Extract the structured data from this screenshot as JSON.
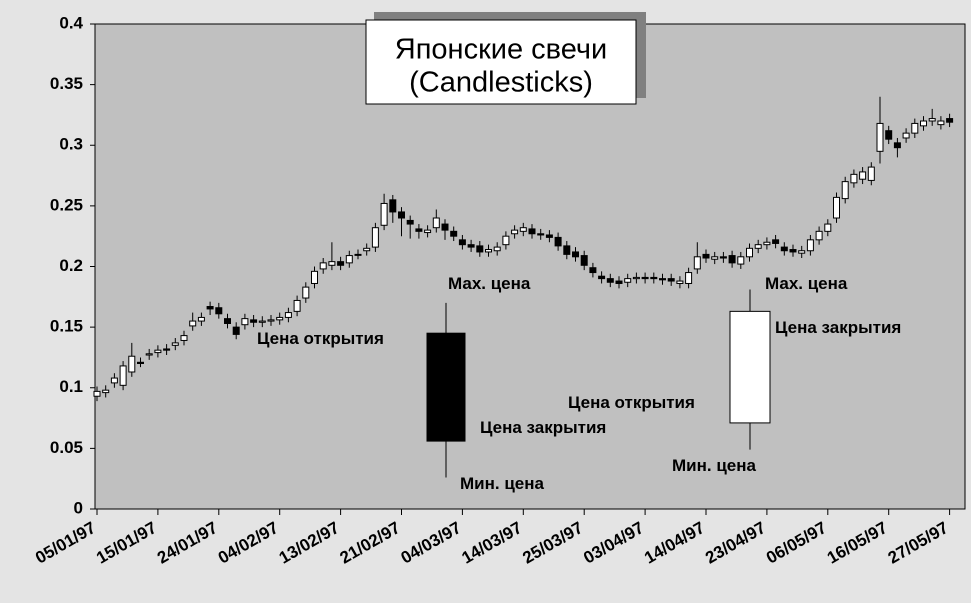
{
  "chart_data": {
    "type": "candlestick",
    "title": "Японские свечи",
    "subtitle": "(Candlesticks)",
    "categories": [
      "05/01/97",
      null,
      null,
      null,
      null,
      null,
      null,
      "15/01/97",
      null,
      null,
      null,
      null,
      null,
      null,
      "24/01/97",
      null,
      null,
      null,
      null,
      null,
      null,
      "04/02/97",
      null,
      null,
      null,
      null,
      null,
      null,
      "13/02/97",
      null,
      null,
      null,
      null,
      null,
      null,
      "21/02/97",
      null,
      null,
      null,
      null,
      null,
      null,
      "04/03/97",
      null,
      null,
      null,
      null,
      null,
      null,
      "14/03/97",
      null,
      null,
      null,
      null,
      null,
      null,
      "25/03/97",
      null,
      null,
      null,
      null,
      null,
      null,
      "03/04/97",
      null,
      null,
      null,
      null,
      null,
      null,
      "14/04/97",
      null,
      null,
      null,
      null,
      null,
      null,
      "23/04/97",
      null,
      null,
      null,
      null,
      null,
      null,
      "06/05/97",
      null,
      null,
      null,
      null,
      null,
      null,
      "16/05/97",
      null,
      null,
      null,
      null,
      null,
      null,
      "27/05/97"
    ],
    "open": [
      0.093,
      0.096,
      0.104,
      0.102,
      0.113,
      0.121,
      0.127,
      0.129,
      0.132,
      0.135,
      0.139,
      0.151,
      0.155,
      0.167,
      0.166,
      0.157,
      0.15,
      0.152,
      0.156,
      0.154,
      0.155,
      0.156,
      0.158,
      0.163,
      0.174,
      0.186,
      0.198,
      0.201,
      0.204,
      0.203,
      0.21,
      0.213,
      0.216,
      0.234,
      0.255,
      0.245,
      0.238,
      0.231,
      0.228,
      0.232,
      0.235,
      0.229,
      0.222,
      0.218,
      0.217,
      0.212,
      0.213,
      0.218,
      0.227,
      0.229,
      0.231,
      0.227,
      0.226,
      0.224,
      0.217,
      0.212,
      0.209,
      0.199,
      0.192,
      0.19,
      0.188,
      0.187,
      0.19,
      0.191,
      0.191,
      0.19,
      0.19,
      0.186,
      0.186,
      0.198,
      0.21,
      0.206,
      0.208,
      0.209,
      0.202,
      0.208,
      0.215,
      0.218,
      0.222,
      0.216,
      0.214,
      0.211,
      0.213,
      0.222,
      0.229,
      0.24,
      0.256,
      0.269,
      0.272,
      0.271,
      0.295,
      0.312,
      0.302,
      0.306,
      0.31,
      0.316,
      0.32,
      0.317,
      0.322
    ],
    "high": [
      0.101,
      0.102,
      0.112,
      0.122,
      0.137,
      0.125,
      0.132,
      0.135,
      0.136,
      0.141,
      0.147,
      0.162,
      0.162,
      0.171,
      0.17,
      0.161,
      0.154,
      0.161,
      0.16,
      0.159,
      0.16,
      0.162,
      0.166,
      0.176,
      0.187,
      0.2,
      0.207,
      0.22,
      0.208,
      0.213,
      0.214,
      0.219,
      0.236,
      0.26,
      0.259,
      0.249,
      0.242,
      0.235,
      0.234,
      0.247,
      0.239,
      0.233,
      0.226,
      0.222,
      0.221,
      0.218,
      0.22,
      0.229,
      0.234,
      0.236,
      0.235,
      0.231,
      0.23,
      0.228,
      0.221,
      0.216,
      0.213,
      0.203,
      0.196,
      0.194,
      0.192,
      0.194,
      0.195,
      0.195,
      0.195,
      0.194,
      0.194,
      0.192,
      0.199,
      0.22,
      0.214,
      0.212,
      0.212,
      0.213,
      0.212,
      0.219,
      0.222,
      0.224,
      0.226,
      0.22,
      0.218,
      0.217,
      0.226,
      0.233,
      0.239,
      0.261,
      0.274,
      0.28,
      0.282,
      0.286,
      0.34,
      0.316,
      0.306,
      0.314,
      0.322,
      0.324,
      0.33,
      0.324,
      0.326
    ],
    "low": [
      0.089,
      0.092,
      0.1,
      0.098,
      0.109,
      0.117,
      0.123,
      0.125,
      0.127,
      0.131,
      0.135,
      0.147,
      0.151,
      0.16,
      0.157,
      0.149,
      0.14,
      0.148,
      0.15,
      0.15,
      0.151,
      0.152,
      0.154,
      0.159,
      0.17,
      0.182,
      0.194,
      0.197,
      0.197,
      0.199,
      0.206,
      0.209,
      0.212,
      0.23,
      0.236,
      0.225,
      0.223,
      0.223,
      0.224,
      0.228,
      0.222,
      0.221,
      0.214,
      0.212,
      0.208,
      0.208,
      0.209,
      0.214,
      0.223,
      0.225,
      0.223,
      0.222,
      0.22,
      0.213,
      0.206,
      0.204,
      0.197,
      0.191,
      0.186,
      0.183,
      0.182,
      0.183,
      0.186,
      0.186,
      0.186,
      0.185,
      0.184,
      0.182,
      0.182,
      0.194,
      0.203,
      0.202,
      0.203,
      0.199,
      0.198,
      0.204,
      0.211,
      0.214,
      0.215,
      0.209,
      0.208,
      0.207,
      0.209,
      0.218,
      0.225,
      0.236,
      0.252,
      0.265,
      0.268,
      0.267,
      0.285,
      0.301,
      0.29,
      0.302,
      0.306,
      0.312,
      0.316,
      0.313,
      0.315
    ],
    "close": [
      0.097,
      0.098,
      0.108,
      0.118,
      0.126,
      0.12,
      0.128,
      0.131,
      0.131,
      0.137,
      0.143,
      0.155,
      0.158,
      0.165,
      0.161,
      0.153,
      0.144,
      0.157,
      0.154,
      0.155,
      0.156,
      0.158,
      0.162,
      0.172,
      0.183,
      0.196,
      0.203,
      0.204,
      0.201,
      0.209,
      0.21,
      0.215,
      0.232,
      0.252,
      0.245,
      0.24,
      0.235,
      0.229,
      0.23,
      0.24,
      0.23,
      0.225,
      0.218,
      0.216,
      0.212,
      0.214,
      0.216,
      0.225,
      0.23,
      0.232,
      0.227,
      0.226,
      0.224,
      0.217,
      0.21,
      0.208,
      0.201,
      0.195,
      0.19,
      0.187,
      0.186,
      0.19,
      0.191,
      0.19,
      0.19,
      0.189,
      0.188,
      0.188,
      0.195,
      0.208,
      0.207,
      0.208,
      0.207,
      0.203,
      0.208,
      0.215,
      0.218,
      0.22,
      0.219,
      0.213,
      0.212,
      0.213,
      0.222,
      0.229,
      0.235,
      0.257,
      0.27,
      0.276,
      0.278,
      0.282,
      0.318,
      0.305,
      0.298,
      0.31,
      0.318,
      0.32,
      0.322,
      0.32,
      0.319
    ],
    "up_color": "#ffffff",
    "down_color": "#000000",
    "examples": [
      {
        "open": 0.145,
        "high": 0.17,
        "low": 0.026,
        "close": 0.056
      },
      {
        "open": 0.071,
        "high": 0.181,
        "low": 0.049,
        "close": 0.163
      }
    ],
    "annotations": [
      "Мах. цена",
      "Цена открытия",
      "Цена закрытия",
      "Мин. цена",
      "Мах. цена",
      "Цена закрытия",
      "Цена открытия",
      "Мин. цена"
    ],
    "ylim": [
      0,
      0.4
    ],
    "yticks": [
      0,
      0.05,
      0.1,
      0.15,
      0.2,
      0.25,
      0.3,
      0.35,
      0.4
    ]
  }
}
